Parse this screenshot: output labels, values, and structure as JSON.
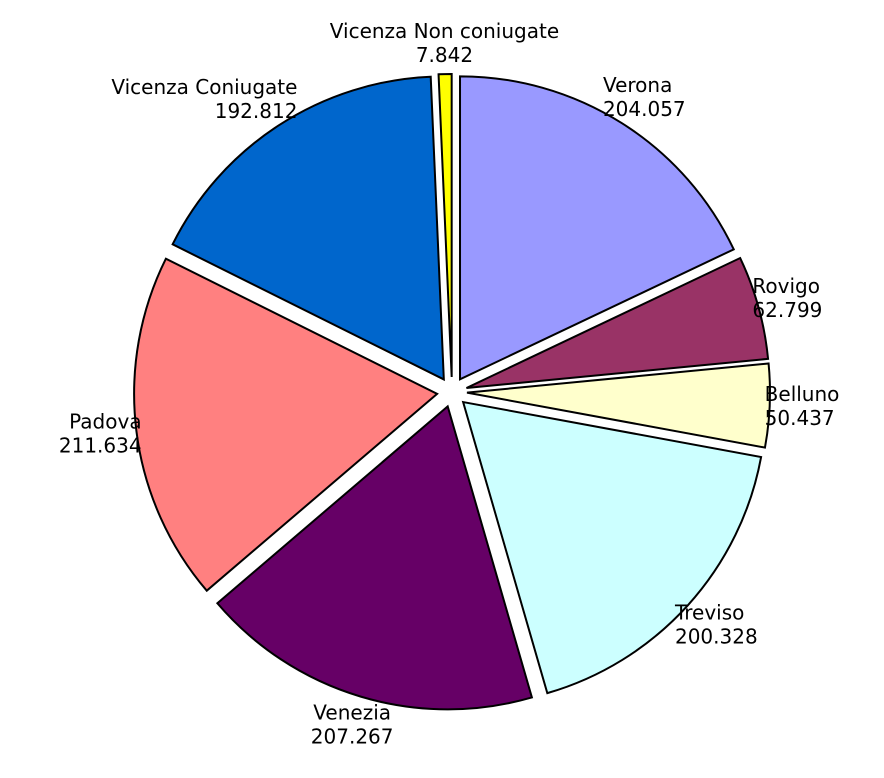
{
  "chart_data": {
    "type": "pie",
    "categories": [
      "Verona",
      "Rovigo",
      "Belluno",
      "Treviso",
      "Venezia",
      "Padova",
      "Vicenza Coniugate",
      "Vicenza Non coniugate"
    ],
    "values": [
      204.057,
      62.799,
      50.437,
      200.328,
      207.267,
      211.634,
      192.812,
      7.842
    ],
    "colors": [
      "#9999ff",
      "#993366",
      "#ffffcc",
      "#ccffff",
      "#660066",
      "#ff8080",
      "#0066cc",
      "#ffff00"
    ]
  }
}
